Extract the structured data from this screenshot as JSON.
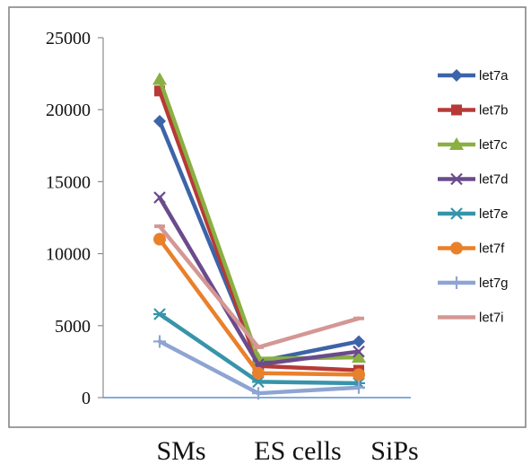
{
  "chart_data": {
    "type": "line",
    "categories": [
      "SMs",
      "ES cells",
      "SiPs"
    ],
    "ylim": [
      0,
      25000
    ],
    "yticks": [
      0,
      5000,
      10000,
      15000,
      20000,
      25000
    ],
    "grid": false,
    "legend_position": "right",
    "series": [
      {
        "name": "let7a",
        "values": [
          19200,
          2500,
          3900
        ],
        "color": "#3d64a8",
        "marker": "diamond"
      },
      {
        "name": "let7b",
        "values": [
          21300,
          2200,
          1900
        ],
        "color": "#b73a36",
        "marker": "square"
      },
      {
        "name": "let7c",
        "values": [
          22100,
          2700,
          2800
        ],
        "color": "#8aaf42",
        "marker": "triangle"
      },
      {
        "name": "let7d",
        "values": [
          13900,
          2300,
          3200
        ],
        "color": "#6a4b8c",
        "marker": "x"
      },
      {
        "name": "let7e",
        "values": [
          5800,
          1100,
          1000
        ],
        "color": "#3794ab",
        "marker": "asterisk"
      },
      {
        "name": "let7f",
        "values": [
          11000,
          1700,
          1600
        ],
        "color": "#e9802a",
        "marker": "circle"
      },
      {
        "name": "let7g",
        "values": [
          3900,
          300,
          700
        ],
        "color": "#8ea4d2",
        "marker": "plus"
      },
      {
        "name": "let7i",
        "values": [
          11900,
          3500,
          5500
        ],
        "color": "#d49794",
        "marker": "dash"
      }
    ]
  }
}
